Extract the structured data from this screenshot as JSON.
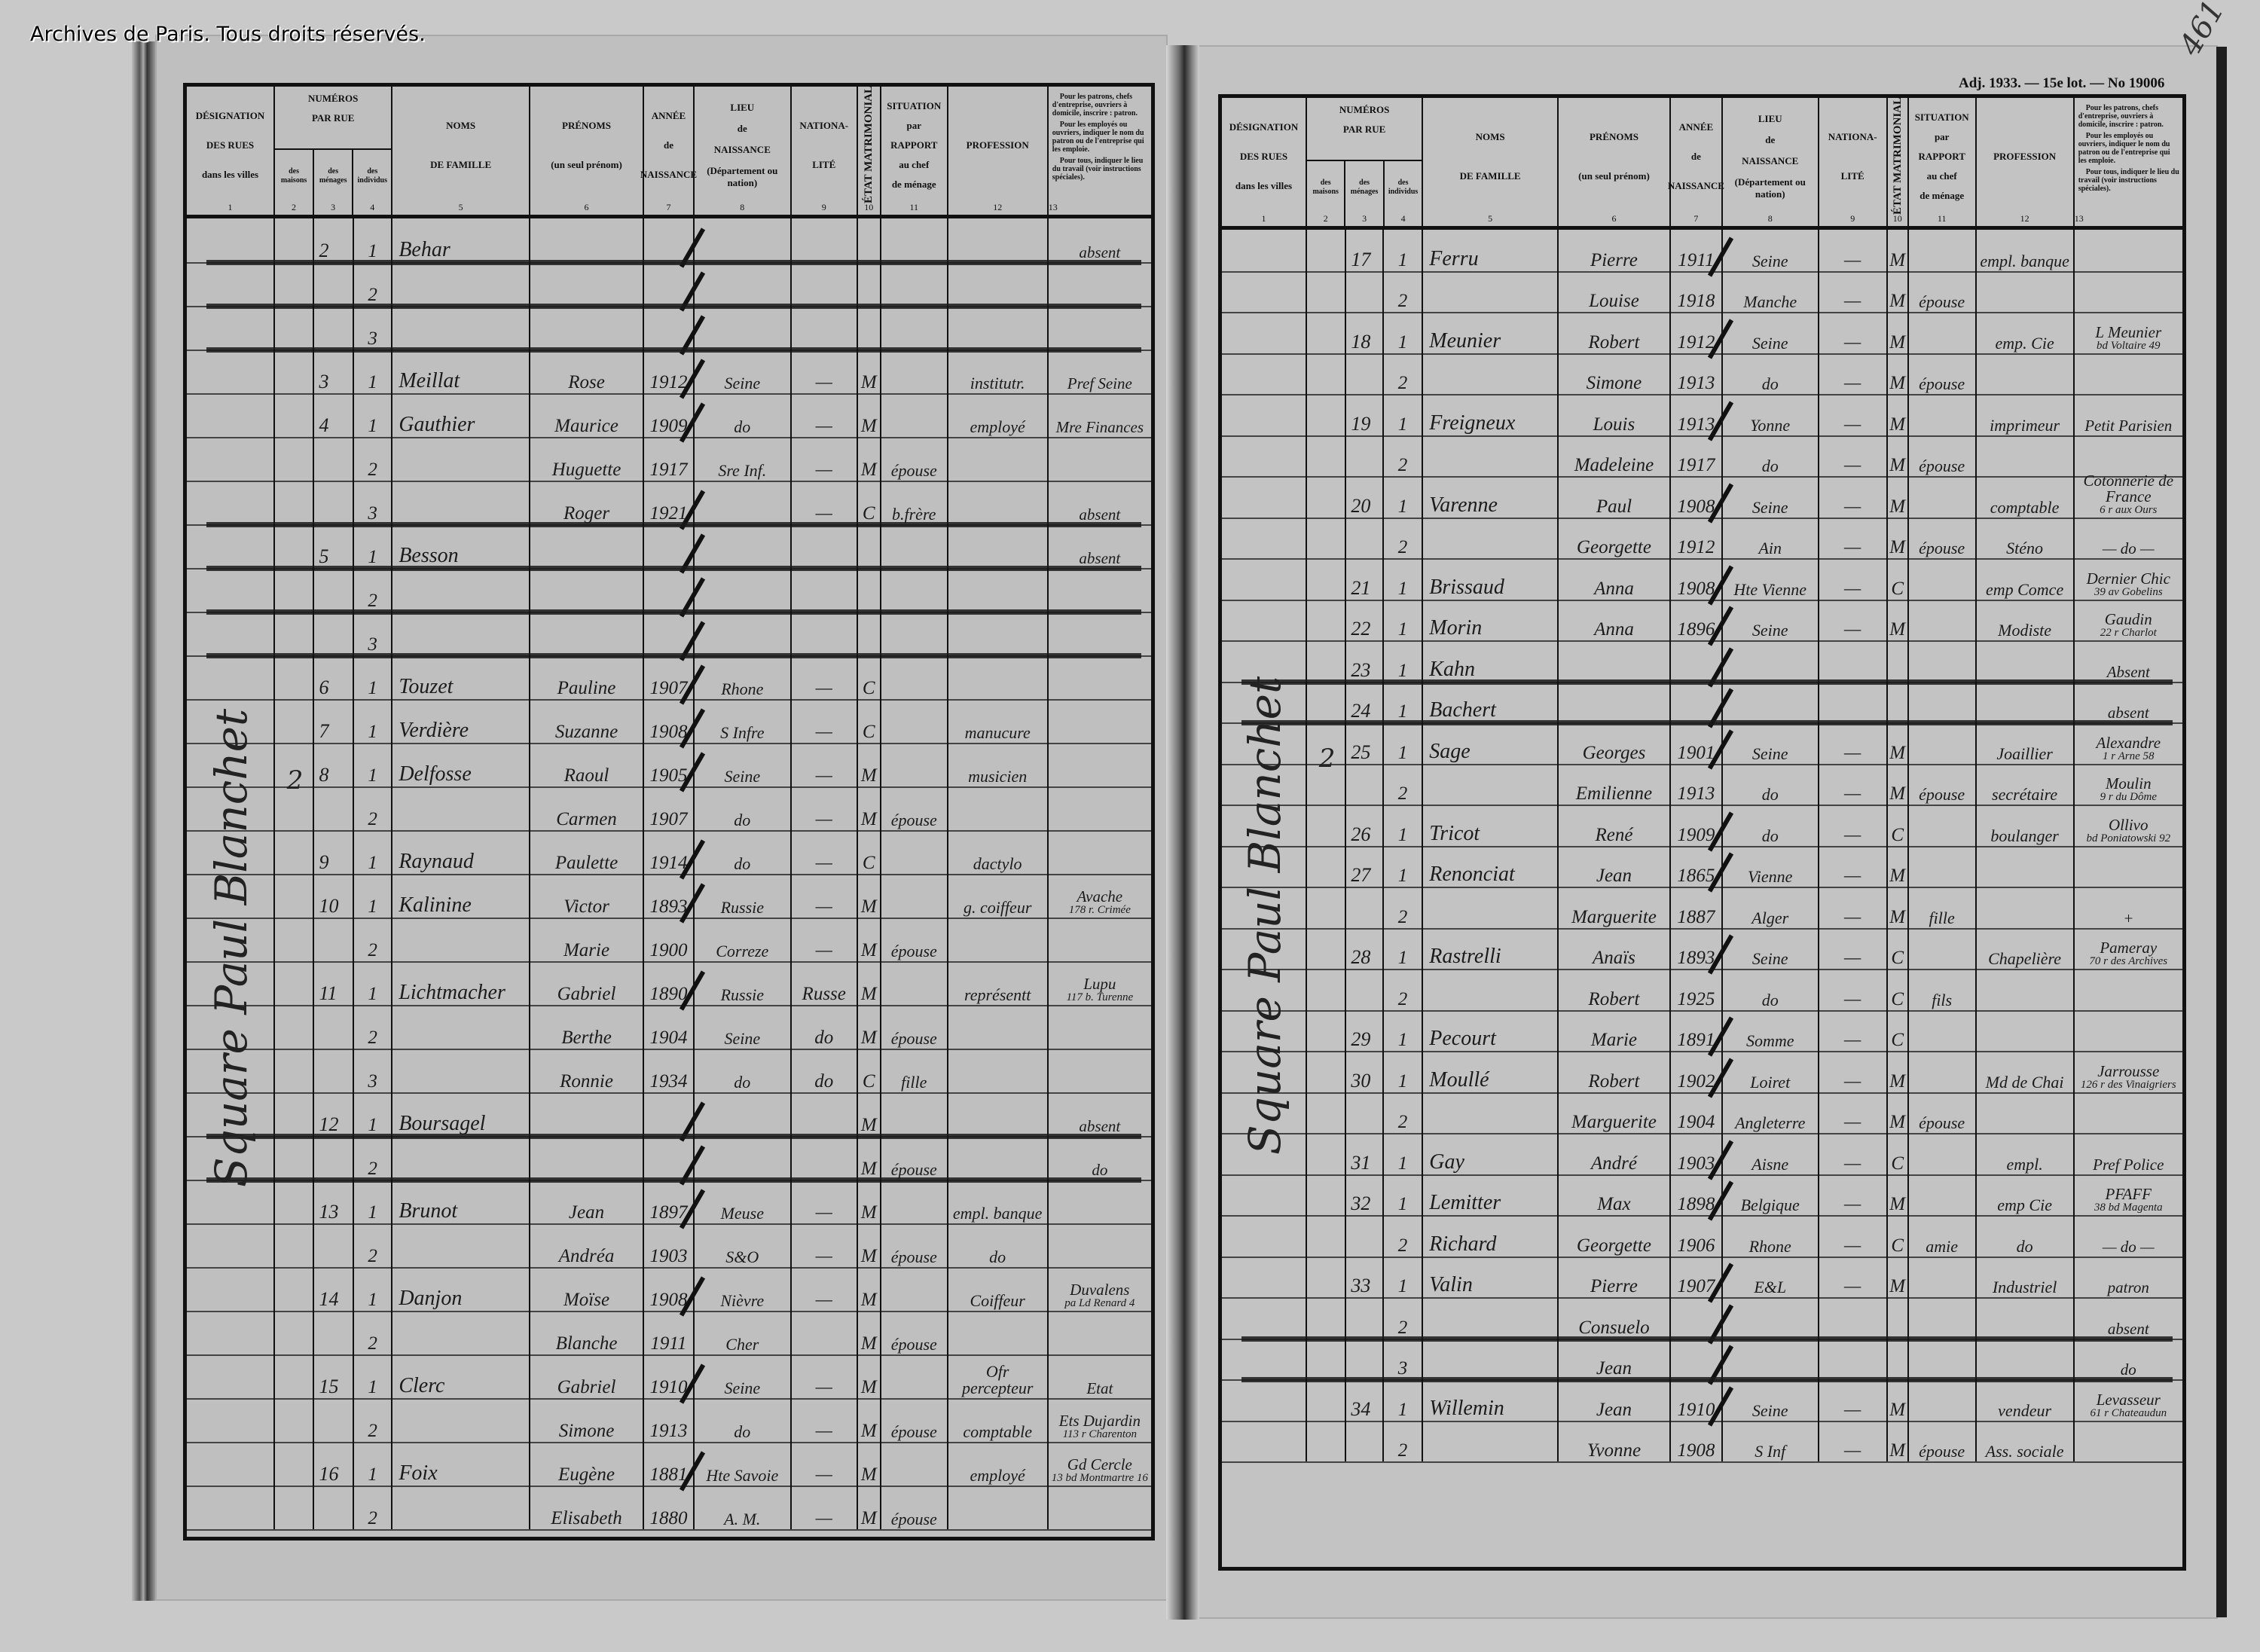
{
  "watermark": "Archives de Paris. Tous droits réservés.",
  "right_header": {
    "lot_line": "Adj. 1933. — 15e lot. — No 19006",
    "folio": "461"
  },
  "columns": {
    "desig": {
      "l1": "DÉSIGNATION",
      "l2": "DES RUES",
      "l3": "dans les villes",
      "n": "1"
    },
    "numeros": {
      "l1": "NUMÉROS",
      "l2": "PAR RUE"
    },
    "maison": {
      "l": "des maisons",
      "n": "2"
    },
    "menage": {
      "l": "des ménages",
      "n": "3"
    },
    "individu": {
      "l": "des individus",
      "n": "4"
    },
    "nom": {
      "l1": "NOMS",
      "l2": "DE FAMILLE",
      "n": "5"
    },
    "prenom": {
      "l1": "PRÉNOMS",
      "l2": "(un seul prénom)",
      "n": "6"
    },
    "annee": {
      "l1": "ANNÉE",
      "l2": "de",
      "l3": "NAISSANCE",
      "n": "7"
    },
    "lieu": {
      "l1": "LIEU",
      "l2": "de",
      "l3": "NAISSANCE",
      "l4": "(Département ou nation)",
      "n": "8"
    },
    "nationalite": {
      "l1": "NATIONA-",
      "l2": "LITÉ",
      "n": "9"
    },
    "etat": {
      "l": "ÉTAT MATRIMONIAL",
      "n": "10"
    },
    "situation": {
      "l1": "SITUATION",
      "l2": "par",
      "l3": "RAPPORT",
      "l4": "au chef",
      "l5": "de ménage",
      "n": "11"
    },
    "profession": {
      "l": "PROFESSION",
      "n": "12"
    },
    "note": {
      "p1": "Pour les patrons, chefs d'entreprise, ouvriers à domicile, inscrire : patron.",
      "p2": "Pour les employés ou ouvriers, indiquer le nom du patron ou de l'entreprise qui les emploie.",
      "p3": "Pour tous, indiquer le lieu du travail (voir instructions spéciales).",
      "n": "13"
    }
  },
  "left_page": {
    "street": "Square Paul Blanchet",
    "house": "2",
    "rows": [
      {
        "menage": "2",
        "individu": "1",
        "nom": "Behar",
        "employeur": "absent",
        "struck": true
      },
      {
        "individu": "2",
        "struck": true
      },
      {
        "individu": "3",
        "struck": true
      },
      {
        "menage": "3",
        "individu": "1",
        "nom": "Meillat",
        "prenom": "Rose",
        "annee": "1912",
        "lieu": "Seine",
        "nationalite": "—",
        "etat": "M",
        "profession": "institutr.",
        "employeur": "Pref Seine"
      },
      {
        "menage": "4",
        "individu": "1",
        "nom": "Gauthier",
        "prenom": "Maurice",
        "annee": "1909",
        "lieu": "do",
        "nationalite": "—",
        "etat": "M",
        "profession": "employé",
        "employeur": "Mre Finances"
      },
      {
        "individu": "2",
        "prenom": "Huguette",
        "annee": "1917",
        "lieu": "Sre Inf.",
        "nationalite": "—",
        "etat": "M",
        "situation": "épouse"
      },
      {
        "individu": "3",
        "prenom": "Roger",
        "annee": "1921",
        "nationalite": "—",
        "etat": "C",
        "situation": "b.frère",
        "employeur": "absent",
        "struck": true
      },
      {
        "menage": "5",
        "individu": "1",
        "nom": "Besson",
        "employeur": "absent",
        "struck": true
      },
      {
        "individu": "2",
        "struck": true
      },
      {
        "individu": "3",
        "struck": true
      },
      {
        "menage": "6",
        "individu": "1",
        "nom": "Touzet",
        "prenom": "Pauline",
        "annee": "1907",
        "lieu": "Rhone",
        "nationalite": "—",
        "etat": "C"
      },
      {
        "menage": "7",
        "individu": "1",
        "nom": "Verdière",
        "prenom": "Suzanne",
        "annee": "1908",
        "lieu": "S Infre",
        "nationalite": "—",
        "etat": "C",
        "profession": "manucure"
      },
      {
        "menage": "8",
        "individu": "1",
        "nom": "Delfosse",
        "prenom": "Raoul",
        "annee": "1905",
        "lieu": "Seine",
        "nationalite": "—",
        "etat": "M",
        "profession": "musicien"
      },
      {
        "individu": "2",
        "prenom": "Carmen",
        "annee": "1907",
        "lieu": "do",
        "nationalite": "—",
        "etat": "M",
        "situation": "épouse"
      },
      {
        "menage": "9",
        "individu": "1",
        "nom": "Raynaud",
        "prenom": "Paulette",
        "annee": "1914",
        "lieu": "do",
        "nationalite": "—",
        "etat": "C",
        "profession": "dactylo"
      },
      {
        "menage": "10",
        "individu": "1",
        "nom": "Kalinine",
        "prenom": "Victor",
        "annee": "1893",
        "lieu": "Russie",
        "nationalite": "—",
        "etat": "M",
        "profession": "g. coiffeur",
        "employeur": "Avache",
        "employeur2": "178 r. Crimée"
      },
      {
        "individu": "2",
        "prenom": "Marie",
        "annee": "1900",
        "lieu": "Correze",
        "nationalite": "—",
        "etat": "M",
        "situation": "épouse"
      },
      {
        "menage": "11",
        "individu": "1",
        "nom": "Lichtmacher",
        "prenom": "Gabriel",
        "annee": "1890",
        "lieu": "Russie",
        "nationalite": "Russe",
        "etat": "M",
        "profession": "représentt",
        "employeur": "Lupu",
        "employeur2": "117 b. Turenne"
      },
      {
        "individu": "2",
        "prenom": "Berthe",
        "annee": "1904",
        "lieu": "Seine",
        "nationalite": "do",
        "etat": "M",
        "situation": "épouse"
      },
      {
        "individu": "3",
        "prenom": "Ronnie",
        "annee": "1934",
        "lieu": "do",
        "nationalite": "do",
        "etat": "C",
        "situation": "fille"
      },
      {
        "menage": "12",
        "individu": "1",
        "nom": "Boursagel",
        "etat": "M",
        "employeur": "absent",
        "struck": true
      },
      {
        "individu": "2",
        "etat": "M",
        "situation": "épouse",
        "employeur": "do",
        "struck": true
      },
      {
        "menage": "13",
        "individu": "1",
        "nom": "Brunot",
        "prenom": "Jean",
        "annee": "1897",
        "lieu": "Meuse",
        "nationalite": "—",
        "etat": "M",
        "profession": "empl. banque"
      },
      {
        "individu": "2",
        "prenom": "Andréa",
        "annee": "1903",
        "lieu": "S&O",
        "nationalite": "—",
        "etat": "M",
        "situation": "épouse",
        "profession": "do"
      },
      {
        "menage": "14",
        "individu": "1",
        "nom": "Danjon",
        "prenom": "Moïse",
        "annee": "1908",
        "lieu": "Nièvre",
        "nationalite": "—",
        "etat": "M",
        "profession": "Coiffeur",
        "employeur": "Duvalens",
        "employeur2": "pa Ld Renard 4"
      },
      {
        "individu": "2",
        "prenom": "Blanche",
        "annee": "1911",
        "lieu": "Cher",
        "etat": "M",
        "situation": "épouse"
      },
      {
        "menage": "15",
        "individu": "1",
        "nom": "Clerc",
        "prenom": "Gabriel",
        "annee": "1910",
        "lieu": "Seine",
        "nationalite": "—",
        "etat": "M",
        "profession": "Ofr percepteur",
        "employeur": "Etat"
      },
      {
        "individu": "2",
        "prenom": "Simone",
        "annee": "1913",
        "lieu": "do",
        "nationalite": "—",
        "etat": "M",
        "situation": "épouse",
        "profession": "comptable",
        "employeur": "Ets Dujardin",
        "employeur2": "113 r Charenton"
      },
      {
        "menage": "16",
        "individu": "1",
        "nom": "Foix",
        "prenom": "Eugène",
        "annee": "1881",
        "lieu": "Hte Savoie",
        "nationalite": "—",
        "etat": "M",
        "profession": "employé",
        "employeur": "Gd Cercle",
        "employeur2": "13 bd Montmartre 16"
      },
      {
        "individu": "2",
        "prenom": "Elisabeth",
        "annee": "1880",
        "lieu": "A. M.",
        "nationalite": "—",
        "etat": "M",
        "situation": "épouse"
      }
    ]
  },
  "right_page": {
    "street": "Square Paul Blanchet",
    "house": "2",
    "rows": [
      {
        "menage": "17",
        "individu": "1",
        "nom": "Ferru",
        "prenom": "Pierre",
        "annee": "1911",
        "lieu": "Seine",
        "nationalite": "—",
        "etat": "M",
        "profession": "empl. banque"
      },
      {
        "individu": "2",
        "prenom": "Louise",
        "annee": "1918",
        "lieu": "Manche",
        "nationalite": "—",
        "etat": "M",
        "situation": "épouse"
      },
      {
        "menage": "18",
        "individu": "1",
        "nom": "Meunier",
        "prenom": "Robert",
        "annee": "1912",
        "lieu": "Seine",
        "nationalite": "—",
        "etat": "M",
        "profession": "emp. Cie",
        "employeur": "L Meunier",
        "employeur2": "bd Voltaire 49"
      },
      {
        "individu": "2",
        "prenom": "Simone",
        "annee": "1913",
        "lieu": "do",
        "nationalite": "—",
        "etat": "M",
        "situation": "épouse"
      },
      {
        "menage": "19",
        "individu": "1",
        "nom": "Freigneux",
        "prenom": "Louis",
        "annee": "1913",
        "lieu": "Yonne",
        "nationalite": "—",
        "etat": "M",
        "profession": "imprimeur",
        "employeur": "Petit Parisien"
      },
      {
        "individu": "2",
        "prenom": "Madeleine",
        "annee": "1917",
        "lieu": "do",
        "nationalite": "—",
        "etat": "M",
        "situation": "épouse"
      },
      {
        "menage": "20",
        "individu": "1",
        "nom": "Varenne",
        "prenom": "Paul",
        "annee": "1908",
        "lieu": "Seine",
        "nationalite": "—",
        "etat": "M",
        "profession": "comptable",
        "employeur": "Cotonnerie de France",
        "employeur2": "6 r aux Ours"
      },
      {
        "individu": "2",
        "prenom": "Georgette",
        "annee": "1912",
        "lieu": "Ain",
        "nationalite": "—",
        "etat": "M",
        "situation": "épouse",
        "profession": "Sténo",
        "employeur": "— do —"
      },
      {
        "menage": "21",
        "individu": "1",
        "nom": "Brissaud",
        "prenom": "Anna",
        "annee": "1908",
        "lieu": "Hte Vienne",
        "nationalite": "—",
        "etat": "C",
        "profession": "emp Comce",
        "employeur": "Dernier Chic",
        "employeur2": "39 av Gobelins"
      },
      {
        "menage": "22",
        "individu": "1",
        "nom": "Morin",
        "prenom": "Anna",
        "annee": "1896",
        "lieu": "Seine",
        "nationalite": "—",
        "etat": "M",
        "profession": "Modiste",
        "employeur": "Gaudin",
        "employeur2": "22 r Charlot"
      },
      {
        "menage": "23",
        "individu": "1",
        "nom": "Kahn",
        "employeur": "Absent",
        "struck": true
      },
      {
        "menage": "24",
        "individu": "1",
        "nom": "Bachert",
        "employeur": "absent",
        "struck": true
      },
      {
        "menage": "25",
        "individu": "1",
        "nom": "Sage",
        "prenom": "Georges",
        "annee": "1901",
        "lieu": "Seine",
        "nationalite": "—",
        "etat": "M",
        "profession": "Joaillier",
        "employeur": "Alexandre",
        "employeur2": "1 r Arne 58"
      },
      {
        "individu": "2",
        "prenom": "Emilienne",
        "annee": "1913",
        "lieu": "do",
        "nationalite": "—",
        "etat": "M",
        "situation": "épouse",
        "profession": "secrétaire",
        "employeur": "Moulin",
        "employeur2": "9 r du Dôme"
      },
      {
        "menage": "26",
        "individu": "1",
        "nom": "Tricot",
        "prenom": "René",
        "annee": "1909",
        "lieu": "do",
        "nationalite": "—",
        "etat": "C",
        "profession": "boulanger",
        "employeur": "Ollivo",
        "employeur2": "bd Poniatowski 92"
      },
      {
        "menage": "27",
        "individu": "1",
        "nom": "Renonciat",
        "prenom": "Jean",
        "annee": "1865",
        "lieu": "Vienne",
        "nationalite": "—",
        "etat": "M"
      },
      {
        "individu": "2",
        "prenom": "Marguerite",
        "annee": "1887",
        "lieu": "Alger",
        "nationalite": "—",
        "etat": "M",
        "situation": "fille",
        "employeur": "+"
      },
      {
        "menage": "28",
        "individu": "1",
        "nom": "Rastrelli",
        "prenom": "Anaïs",
        "annee": "1893",
        "lieu": "Seine",
        "nationalite": "—",
        "etat": "C",
        "profession": "Chapelière",
        "employeur": "Pameray",
        "employeur2": "70 r des Archives"
      },
      {
        "individu": "2",
        "prenom": "Robert",
        "annee": "1925",
        "lieu": "do",
        "nationalite": "—",
        "etat": "C",
        "situation": "fils"
      },
      {
        "menage": "29",
        "individu": "1",
        "nom": "Pecourt",
        "prenom": "Marie",
        "annee": "1891",
        "lieu": "Somme",
        "nationalite": "—",
        "etat": "C"
      },
      {
        "menage": "30",
        "individu": "1",
        "nom": "Moullé",
        "prenom": "Robert",
        "annee": "1902",
        "lieu": "Loiret",
        "nationalite": "—",
        "etat": "M",
        "profession": "Md de Chai",
        "employeur": "Jarrousse",
        "employeur2": "126 r des Vinaigriers"
      },
      {
        "individu": "2",
        "prenom": "Marguerite",
        "annee": "1904",
        "lieu": "Angleterre",
        "nationalite": "—",
        "etat": "M",
        "situation": "épouse"
      },
      {
        "menage": "31",
        "individu": "1",
        "nom": "Gay",
        "prenom": "André",
        "annee": "1903",
        "lieu": "Aisne",
        "nationalite": "—",
        "etat": "C",
        "profession": "empl.",
        "employeur": "Pref Police"
      },
      {
        "menage": "32",
        "individu": "1",
        "nom": "Lemitter",
        "prenom": "Max",
        "annee": "1898",
        "lieu": "Belgique",
        "nationalite": "—",
        "etat": "M",
        "profession": "emp Cie",
        "employeur": "PFAFF",
        "employeur2": "38 bd Magenta"
      },
      {
        "individu": "2",
        "nom": "Richard",
        "prenom": "Georgette",
        "annee": "1906",
        "lieu": "Rhone",
        "nationalite": "—",
        "etat": "C",
        "situation": "amie",
        "profession": "do",
        "employeur": "— do —"
      },
      {
        "menage": "33",
        "individu": "1",
        "nom": "Valin",
        "prenom": "Pierre",
        "annee": "1907",
        "lieu": "E&L",
        "nationalite": "—",
        "etat": "M",
        "profession": "Industriel",
        "employeur": "patron"
      },
      {
        "individu": "2",
        "prenom": "Consuelo",
        "employeur": "absent",
        "struck": true
      },
      {
        "individu": "3",
        "prenom": "Jean",
        "employeur": "do",
        "struck": true
      },
      {
        "menage": "34",
        "individu": "1",
        "nom": "Willemin",
        "prenom": "Jean",
        "annee": "1910",
        "lieu": "Seine",
        "nationalite": "—",
        "etat": "M",
        "profession": "vendeur",
        "employeur": "Levasseur",
        "employeur2": "61 r Chateaudun"
      },
      {
        "individu": "2",
        "prenom": "Yvonne",
        "annee": "1908",
        "lieu": "S Inf",
        "nationalite": "—",
        "etat": "M",
        "situation": "épouse",
        "profession": "Ass. sociale"
      }
    ]
  }
}
